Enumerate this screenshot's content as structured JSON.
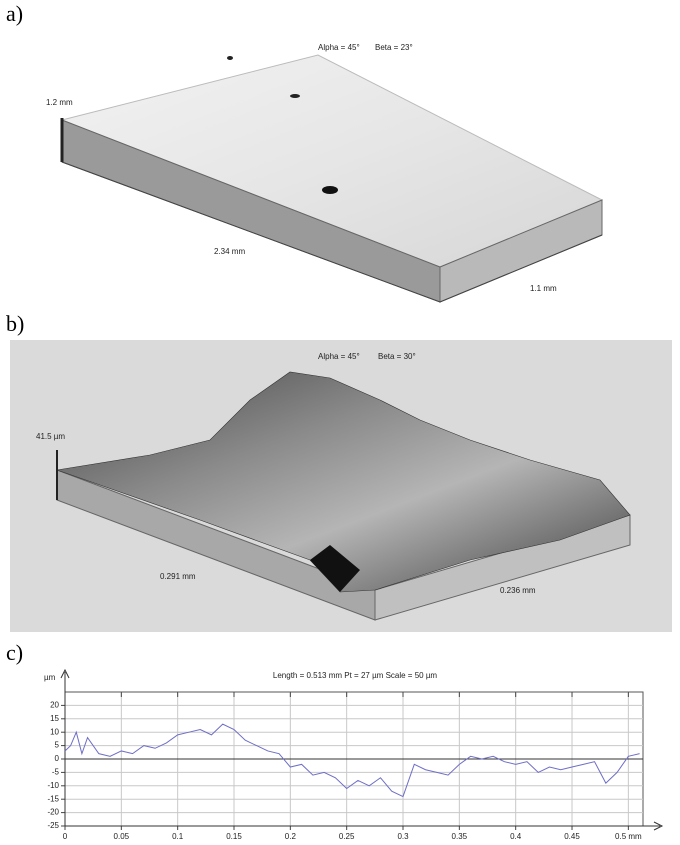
{
  "panel_a": {
    "label": "a)",
    "alpha": "Alpha = 45°",
    "beta": "Beta = 23°",
    "height": "1.2 mm",
    "length": "2.34 mm",
    "width": "1.1 mm"
  },
  "panel_b": {
    "label": "b)",
    "alpha": "Alpha = 45°",
    "beta": "Beta = 30°",
    "height": "41.5 µm",
    "length": "0.291 mm",
    "width": "0.236 mm"
  },
  "panel_c": {
    "label": "c)"
  },
  "chart_data": {
    "type": "line",
    "title": "Length = 0.513 mm  Pt = 27 µm  Scale = 50 µm",
    "y_label": "µm",
    "color": "#6e6ec8",
    "grid": true,
    "x": [
      0,
      0.005,
      0.01,
      0.015,
      0.02,
      0.03,
      0.04,
      0.05,
      0.06,
      0.07,
      0.08,
      0.09,
      0.1,
      0.11,
      0.12,
      0.13,
      0.14,
      0.15,
      0.16,
      0.17,
      0.18,
      0.19,
      0.2,
      0.21,
      0.22,
      0.23,
      0.24,
      0.25,
      0.26,
      0.27,
      0.28,
      0.29,
      0.3,
      0.31,
      0.32,
      0.33,
      0.34,
      0.35,
      0.36,
      0.37,
      0.38,
      0.39,
      0.4,
      0.41,
      0.42,
      0.43,
      0.44,
      0.45,
      0.46,
      0.47,
      0.48,
      0.49,
      0.5,
      0.51
    ],
    "values": [
      3,
      5,
      10,
      2,
      8,
      2,
      1,
      3,
      2,
      5,
      4,
      6,
      9,
      10,
      11,
      9,
      13,
      11,
      7,
      5,
      3,
      2,
      -3,
      -2,
      -6,
      -5,
      -7,
      -11,
      -8,
      -10,
      -7,
      -12,
      -14,
      -2,
      -4,
      -5,
      -6,
      -2,
      1,
      0,
      1,
      -1,
      -2,
      -1,
      -5,
      -3,
      -4,
      -3,
      -2,
      -1,
      -9,
      -5,
      1,
      2
    ],
    "xlim": [
      0,
      0.513
    ],
    "ylim": [
      -25,
      25
    ],
    "xticks": [
      0,
      0.05,
      0.1,
      0.15,
      0.2,
      0.25,
      0.3,
      0.35,
      0.4,
      0.45,
      {
        "value": 0.5,
        "label": "0.5 mm"
      }
    ],
    "yticks": [
      -25,
      -20,
      -15,
      -10,
      -5,
      0,
      5,
      10,
      15,
      20
    ]
  }
}
